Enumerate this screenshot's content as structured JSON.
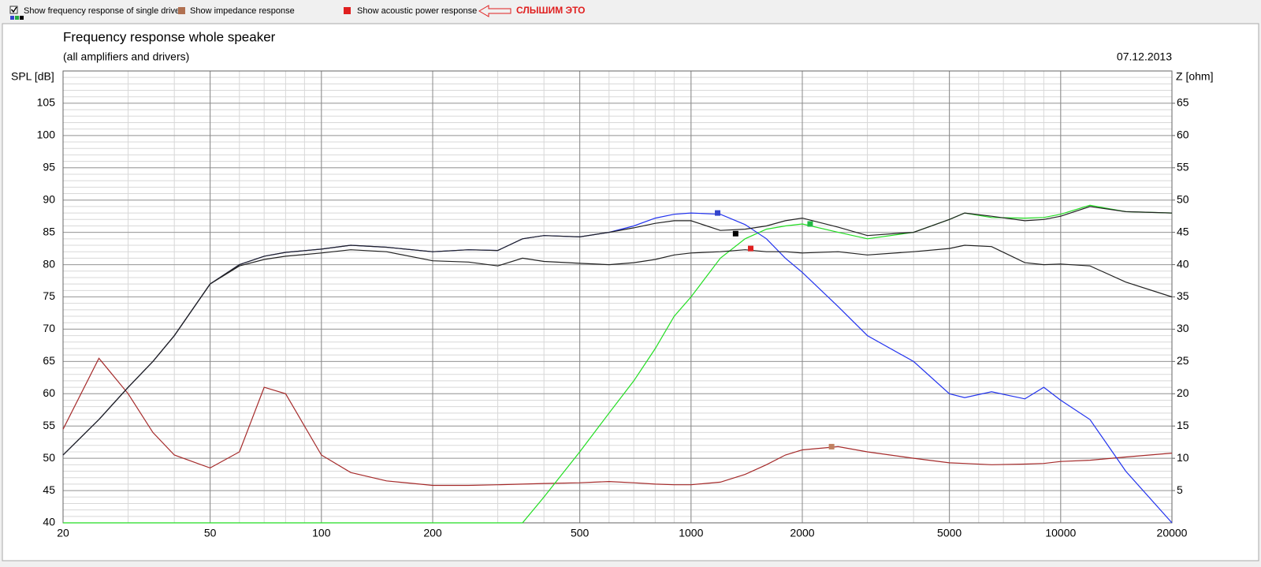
{
  "toolbar": {
    "items": [
      "Show frequency response of single drive",
      "Show impedance response",
      "Show acoustic power response"
    ],
    "note": "СЛЫШИМ ЭТО"
  },
  "chart_data": {
    "type": "line",
    "title": "Frequency response whole speaker",
    "subtitle": "(all amplifiers and drivers)",
    "date": "07.12.2013",
    "y_label": "SPL [dB]",
    "y2_label": "Z [ohm]",
    "xscale": "log",
    "grid": true,
    "x": [
      20,
      25,
      30,
      35,
      40,
      50,
      60,
      70,
      80,
      100,
      120,
      150,
      200,
      250,
      300,
      350,
      400,
      500,
      600,
      700,
      800,
      900,
      1000,
      1200,
      1400,
      1600,
      1800,
      2000,
      2500,
      3000,
      4000,
      5000,
      5500,
      6500,
      8000,
      9000,
      10000,
      12000,
      15000,
      20000
    ],
    "xlim": [
      20,
      20000
    ],
    "xticks": [
      20,
      50,
      100,
      200,
      500,
      1000,
      2000,
      5000,
      10000,
      20000
    ],
    "ylim": [
      40,
      110
    ],
    "yticks": [
      40,
      45,
      50,
      55,
      60,
      65,
      70,
      75,
      80,
      85,
      90,
      95,
      100,
      105
    ],
    "y2lim": [
      0,
      70
    ],
    "y2ticks": [
      5,
      10,
      15,
      20,
      25,
      30,
      35,
      40,
      45,
      50,
      55,
      60,
      65
    ],
    "series": [
      {
        "color": "#a52a2a",
        "axis": "y2",
        "values": [
          14.5,
          25.5,
          20,
          14,
          10.5,
          8.5,
          11,
          21,
          20,
          10.5,
          7.8,
          6.5,
          5.8,
          5.8,
          5.9,
          6,
          6.1,
          6.2,
          6.4,
          6.2,
          6,
          5.9,
          5.9,
          6.3,
          7.5,
          9,
          10.5,
          11.3,
          11.8,
          11,
          10,
          9.3,
          9.2,
          9,
          9.1,
          9.2,
          9.5,
          9.7,
          10.2,
          10.8
        ]
      },
      {
        "color": "#22dd22",
        "values": [
          40,
          40,
          40,
          40,
          40,
          40,
          40,
          40,
          40,
          40,
          40,
          40,
          40,
          40,
          40,
          40,
          44,
          51,
          57,
          62,
          67,
          72,
          75,
          81,
          84,
          85.5,
          86,
          86.3,
          85,
          84,
          85,
          87,
          88,
          87.3,
          87.2,
          87.3,
          87.8,
          89.2,
          88.2,
          88
        ]
      },
      {
        "color": "#2233ee",
        "values": [
          50.5,
          56,
          61,
          65,
          69,
          77,
          80,
          81.3,
          81.9,
          82.4,
          83,
          82.7,
          82,
          82.3,
          82.2,
          84,
          84.5,
          84.3,
          85,
          86,
          87.2,
          87.8,
          88,
          87.8,
          86.2,
          84,
          81,
          78.8,
          73.5,
          69,
          65,
          60,
          59.4,
          60.3,
          59.2,
          61,
          59,
          56,
          48,
          40
        ]
      },
      {
        "color": "#222222",
        "values": [
          50.5,
          56,
          61,
          65,
          69,
          77,
          79.8,
          80.8,
          81.3,
          81.8,
          82.3,
          82,
          80.6,
          80.4,
          79.8,
          81,
          80.5,
          80.2,
          80,
          80.3,
          80.8,
          81.5,
          81.8,
          82,
          82.3,
          82,
          82,
          81.8,
          82,
          81.5,
          82,
          82.5,
          83,
          82.8,
          80.3,
          80,
          80.1,
          79.8,
          77.3,
          75
        ]
      },
      {
        "color": "#222222",
        "values": [
          50.5,
          56,
          61,
          65,
          69,
          77,
          80,
          81.3,
          81.9,
          82.4,
          83,
          82.7,
          82,
          82.3,
          82.2,
          84,
          84.5,
          84.3,
          85,
          85.7,
          86.4,
          86.8,
          86.8,
          85.3,
          85.5,
          86,
          86.8,
          87.2,
          85.8,
          84.5,
          85,
          87,
          88,
          87.5,
          86.8,
          87,
          87.5,
          89,
          88.2,
          88
        ]
      }
    ],
    "markers": [
      {
        "x": 1180,
        "y": 88,
        "color": "#3344cc"
      },
      {
        "x": 1320,
        "y": 84.8,
        "color": "#000000"
      },
      {
        "x": 1450,
        "y": 82.5,
        "color": "#e02020"
      },
      {
        "x": 2100,
        "y": 86.3,
        "color": "#22bb44"
      },
      {
        "x": 2400,
        "y": 11.8,
        "color": "#c08060",
        "axis": "y2"
      }
    ]
  }
}
